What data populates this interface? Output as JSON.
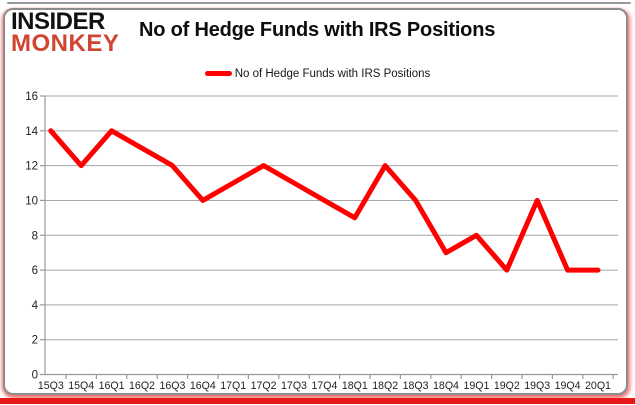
{
  "logo": {
    "line1": "INSIDER",
    "line2": "MONKEY"
  },
  "header": {
    "title": "No of Hedge Funds with IRS Positions"
  },
  "legend": {
    "label": "No of Hedge Funds with IRS Positions"
  },
  "chart_data": {
    "type": "line",
    "title": "No of Hedge Funds with IRS Positions",
    "categories": [
      "15Q3",
      "15Q4",
      "16Q1",
      "16Q2",
      "16Q3",
      "16Q4",
      "17Q1",
      "17Q2",
      "17Q3",
      "17Q4",
      "18Q1",
      "18Q2",
      "18Q3",
      "18Q4",
      "19Q1",
      "19Q2",
      "19Q3",
      "19Q4",
      "20Q1"
    ],
    "values": [
      14,
      12,
      14,
      13,
      12,
      10,
      11,
      12,
      11,
      10,
      9,
      12,
      10,
      7,
      8,
      6,
      10,
      6,
      6
    ],
    "xlabel": "",
    "ylabel": "",
    "ylim": [
      0,
      16
    ],
    "ytick_step": 2,
    "grid": true,
    "legend_position": "top-center",
    "series_color": "#ff0000"
  },
  "colors": {
    "line_red": "#ff0000",
    "logo_red": "#d0452f",
    "gridline": "#a6a6a6",
    "axis": "#9a9a9a",
    "tick_text": "#1f1f1f",
    "panel_border": "#8c8c8c",
    "bottom_bar_red": "#e61717"
  }
}
